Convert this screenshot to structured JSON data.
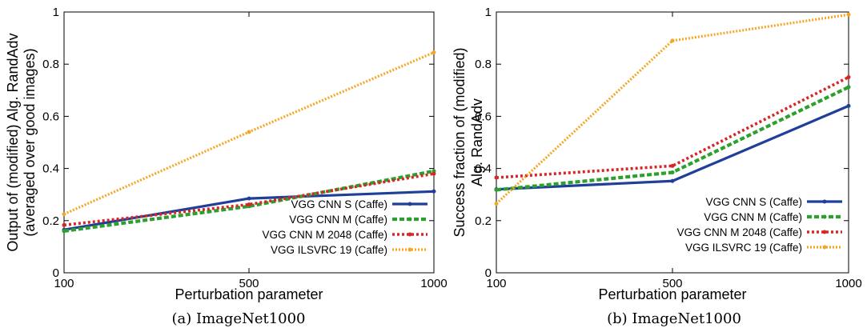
{
  "chart_data": [
    {
      "type": "line",
      "xlabel": "Perturbation parameter",
      "ylabel": [
        "Output of (modified) Alg. RandAdv",
        "(averaged over good images)"
      ],
      "caption": "(a) ImageNet1000",
      "x": [
        "100",
        "500",
        "1000"
      ],
      "ylim": [
        0,
        1
      ],
      "yticks": [
        "0",
        "0.2",
        "0.4",
        "0.6",
        "0.8",
        "1"
      ],
      "legend_position": "bottom-right",
      "series": [
        {
          "name": "VGG CNN S  (Caffe)",
          "color": "#1f3f99",
          "values": [
            0.165,
            0.285,
            0.312
          ]
        },
        {
          "name": "VGG CNN M  (Caffe)",
          "color": "#2ca02c",
          "values": [
            0.16,
            0.255,
            0.39
          ]
        },
        {
          "name": "VGG CNN M 2048 (Caffe)",
          "color": "#d62728",
          "values": [
            0.183,
            0.262,
            0.38
          ]
        },
        {
          "name": "VGG ILSVRC 19 (Caffe)",
          "color": "#f5a623",
          "values": [
            0.225,
            0.54,
            0.845
          ]
        }
      ]
    },
    {
      "type": "line",
      "xlabel": "Perturbation parameter",
      "ylabel": [
        "Success fraction of (modified)",
        "Alg. RandAdv"
      ],
      "caption": "(b) ImageNet1000",
      "x": [
        "100",
        "500",
        "1000"
      ],
      "ylim": [
        0,
        1
      ],
      "yticks": [
        "0",
        "0.2",
        "0.4",
        "0.6",
        "0.8",
        "1"
      ],
      "legend_position": "bottom-right",
      "series": [
        {
          "name": "VGG CNN S  (Caffe)",
          "color": "#1f3f99",
          "values": [
            0.32,
            0.352,
            0.64
          ]
        },
        {
          "name": "VGG CNN M  (Caffe)",
          "color": "#2ca02c",
          "values": [
            0.318,
            0.385,
            0.712
          ]
        },
        {
          "name": "VGG CNN M 2048 (Caffe)",
          "color": "#d62728",
          "values": [
            0.365,
            0.41,
            0.75
          ]
        },
        {
          "name": "VGG ILSVRC 19 (Caffe)",
          "color": "#f5a623",
          "values": [
            0.265,
            0.89,
            0.99
          ]
        }
      ]
    }
  ]
}
